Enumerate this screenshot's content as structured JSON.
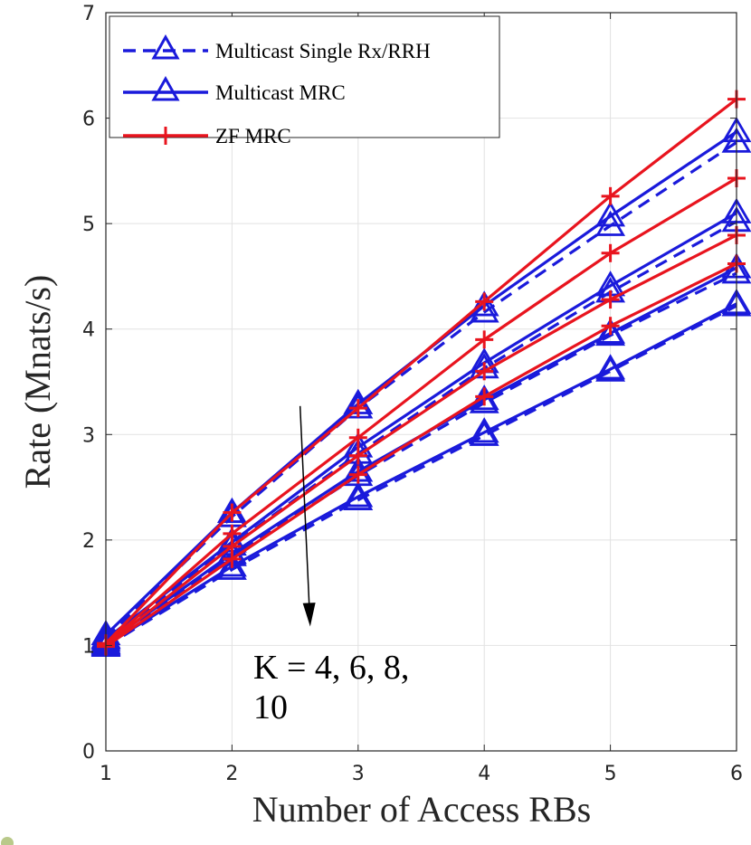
{
  "chart_data": {
    "type": "line",
    "xlabel": "Number of Access RBs",
    "ylabel": "Rate (Mnats/s)",
    "xlim": [
      1,
      6
    ],
    "ylim": [
      0,
      7
    ],
    "xticks": [
      1,
      2,
      3,
      4,
      5,
      6
    ],
    "yticks": [
      0,
      1,
      2,
      3,
      4,
      5,
      6,
      7
    ],
    "grid": true,
    "legend_position": "top-left",
    "legend": [
      "Multicast Single Rx/RRH",
      "Multicast MRC",
      "ZF MRC"
    ],
    "colors": {
      "blue": "#1a1adb",
      "red": "#e8141e",
      "grid": "#e2e2e2",
      "axis": "#262626"
    },
    "x": [
      1,
      2,
      3,
      4,
      5,
      6
    ],
    "series": [
      {
        "name": "Multicast Single Rx/RRH",
        "K": 4,
        "style": "dashed",
        "color": "blue",
        "marker": "triangle",
        "values": [
          1.07,
          2.22,
          3.25,
          4.16,
          4.98,
          5.77
        ]
      },
      {
        "name": "Multicast Single Rx/RRH",
        "K": 6,
        "style": "dashed",
        "color": "blue",
        "marker": "triangle",
        "values": [
          1.04,
          1.95,
          2.82,
          3.63,
          4.35,
          5.02
        ]
      },
      {
        "name": "Multicast Single Rx/RRH",
        "K": 8,
        "style": "dashed",
        "color": "blue",
        "marker": "triangle",
        "values": [
          1.01,
          1.85,
          2.61,
          3.3,
          3.94,
          4.53
        ]
      },
      {
        "name": "Multicast Single Rx/RRH",
        "K": 10,
        "style": "dashed",
        "color": "blue",
        "marker": "triangle",
        "values": [
          0.99,
          1.72,
          2.38,
          2.99,
          3.6,
          4.22
        ]
      },
      {
        "name": "Multicast MRC",
        "K": 4,
        "style": "solid",
        "color": "blue",
        "marker": "triangle",
        "values": [
          1.1,
          2.26,
          3.29,
          4.22,
          5.07,
          5.87
        ]
      },
      {
        "name": "Multicast MRC",
        "K": 6,
        "style": "solid",
        "color": "blue",
        "marker": "triangle",
        "values": [
          1.06,
          1.98,
          2.88,
          3.68,
          4.41,
          5.1
        ]
      },
      {
        "name": "Multicast MRC",
        "K": 8,
        "style": "solid",
        "color": "blue",
        "marker": "triangle",
        "values": [
          1.02,
          1.87,
          2.65,
          3.33,
          3.96,
          4.58
        ]
      },
      {
        "name": "Multicast MRC",
        "K": 10,
        "style": "solid",
        "color": "blue",
        "marker": "triangle",
        "values": [
          1.0,
          1.75,
          2.41,
          3.02,
          3.62,
          4.24
        ]
      },
      {
        "name": "ZF MRC",
        "K": 4,
        "style": "solid",
        "color": "red",
        "marker": "plus",
        "values": [
          1.02,
          2.26,
          3.25,
          4.26,
          5.26,
          6.18
        ]
      },
      {
        "name": "ZF MRC",
        "K": 6,
        "style": "solid",
        "color": "red",
        "marker": "plus",
        "values": [
          1.01,
          2.06,
          2.97,
          3.9,
          4.72,
          5.43
        ]
      },
      {
        "name": "ZF MRC",
        "K": 8,
        "style": "solid",
        "color": "red",
        "marker": "plus",
        "values": [
          1.0,
          1.94,
          2.8,
          3.6,
          4.28,
          4.89
        ]
      },
      {
        "name": "ZF MRC",
        "K": 10,
        "style": "solid",
        "color": "red",
        "marker": "plus",
        "values": [
          0.99,
          1.82,
          2.62,
          3.36,
          4.03,
          4.62
        ]
      }
    ],
    "annotations": [
      {
        "text_line1": "K = 4, 6, 8,",
        "text_line2": "10",
        "arrow_from": [
          2.54,
          3.27
        ],
        "arrow_to": [
          2.62,
          1.18
        ]
      }
    ]
  }
}
